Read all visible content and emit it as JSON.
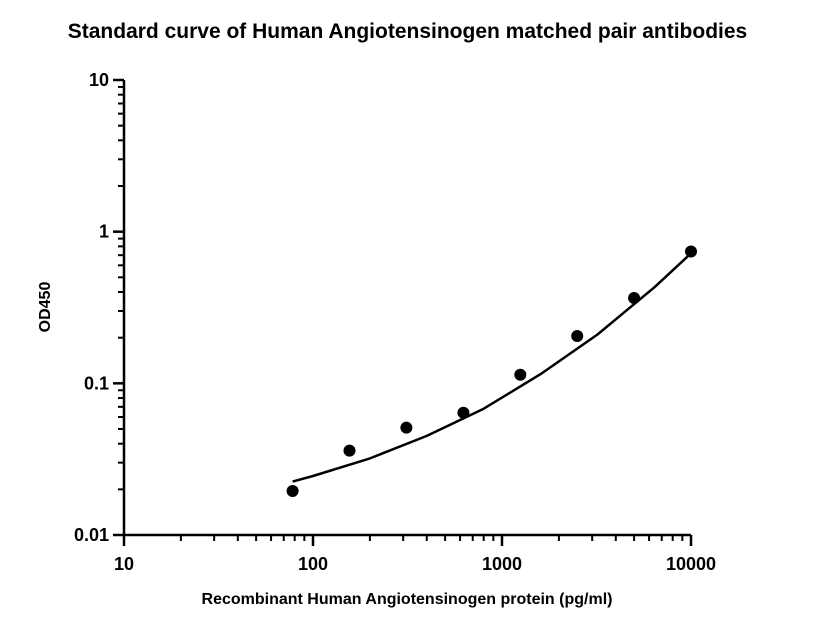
{
  "chart_data": {
    "type": "scatter",
    "title": "Standard curve of Human Angiotensinogen matched pair antibodies",
    "xlabel": "Recombinant Human Angiotensinogen protein (pg/ml)",
    "ylabel": "OD450",
    "x_scale": "log",
    "y_scale": "log",
    "xlim": [
      10,
      10000
    ],
    "ylim": [
      0.01,
      10
    ],
    "x_ticks": [
      "10",
      "100",
      "1000",
      "10000"
    ],
    "y_ticks": [
      "0.01",
      "0.1",
      "1",
      "10"
    ],
    "grid": false,
    "series": [
      {
        "x": [
          78,
          156,
          312,
          625,
          1250,
          2500,
          5000,
          10000
        ],
        "y": [
          0.0195,
          0.036,
          0.051,
          0.064,
          0.114,
          0.205,
          0.365,
          0.74
        ]
      }
    ],
    "fit_curve": {
      "x": [
        78,
        100,
        200,
        400,
        800,
        1600,
        3200,
        6400,
        10000
      ],
      "y": [
        0.0225,
        0.0245,
        0.032,
        0.045,
        0.068,
        0.115,
        0.21,
        0.43,
        0.72
      ]
    },
    "colors": {
      "markers": "#000000",
      "line": "#000000",
      "axes": "#000000"
    }
  }
}
